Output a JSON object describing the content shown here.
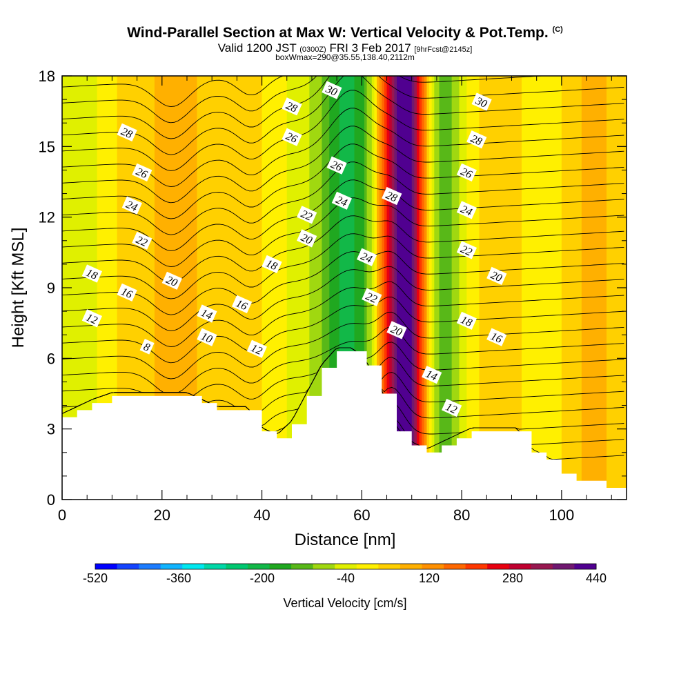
{
  "title": {
    "main": "Wind-Parallel Section at Max W: Vertical Velocity & Pot.Temp.",
    "main_tag": "(C)",
    "valid_prefix": "Valid 1200 JST",
    "valid_utc": "(0300Z)",
    "valid_date": "FRI 3 Feb 2017",
    "forecast": "[9hrFcst@2145z]",
    "box": "boxWmax=290@35.55,138.40,2112m"
  },
  "colorbar_label": "Vertical Velocity [cm/s]",
  "colors": {
    "colorbar": [
      "#0000ff",
      "#1444ff",
      "#1c7cff",
      "#10b4ff",
      "#00e8f0",
      "#00d8a8",
      "#00c870",
      "#12b848",
      "#20a820",
      "#58b818",
      "#a0d810",
      "#e0f000",
      "#fff000",
      "#ffd000",
      "#ffb000",
      "#ff9000",
      "#ff6800",
      "#ff3800",
      "#e80010",
      "#c00030",
      "#981850",
      "#701870",
      "#500090"
    ]
  },
  "chart_data": {
    "type": "heatmap",
    "title": "Wind-Parallel Section at Max W: Vertical Velocity & Pot.Temp.",
    "xlabel": "Distance [nm]",
    "ylabel": "Height [Kft MSL]",
    "xlim": [
      0,
      113
    ],
    "ylim": [
      0,
      18
    ],
    "x_ticks": [
      0,
      20,
      40,
      60,
      80,
      100
    ],
    "y_ticks": [
      0,
      3,
      6,
      9,
      12,
      15,
      18
    ],
    "colorbar": {
      "variable": "Vertical Velocity [cm/s]",
      "min": -520,
      "max": 440,
      "step": 40,
      "tick_values": [
        -520,
        -360,
        -200,
        -40,
        120,
        280,
        440
      ]
    },
    "vertical_velocity_columns": {
      "distance_nm": [
        0,
        3,
        6,
        9,
        12,
        15,
        18,
        21,
        24,
        27,
        30,
        33,
        36,
        39,
        42,
        45,
        48,
        51,
        54,
        57,
        60,
        62,
        64,
        66,
        68,
        70,
        72,
        74,
        76,
        78,
        80,
        82,
        85,
        88,
        91,
        94,
        97,
        100,
        103,
        106,
        109,
        113
      ],
      "w_cm_s": [
        -60,
        -70,
        -50,
        -20,
        10,
        0,
        30,
        80,
        60,
        40,
        20,
        30,
        40,
        10,
        -20,
        -40,
        -60,
        -100,
        -180,
        -220,
        -180,
        -80,
        120,
        300,
        420,
        360,
        160,
        -40,
        -160,
        -120,
        -60,
        -20,
        20,
        40,
        10,
        -30,
        -20,
        0,
        30,
        60,
        40,
        20
      ]
    },
    "terrain": {
      "distance_nm": [
        0,
        3,
        6,
        10,
        13,
        16,
        19,
        22,
        25,
        28,
        31,
        34,
        37,
        40,
        43,
        46,
        49,
        52,
        55,
        58,
        61,
        64,
        67,
        70,
        73,
        76,
        79,
        82,
        85,
        88,
        91,
        94,
        97,
        100,
        103,
        106,
        109,
        113
      ],
      "height_kft": [
        3.5,
        3.8,
        4.1,
        4.4,
        4.4,
        4.4,
        4.4,
        4.4,
        4.4,
        4.1,
        3.8,
        3.8,
        3.8,
        2.9,
        2.6,
        3.2,
        4.4,
        5.6,
        6.3,
        6.3,
        5.7,
        4.5,
        2.9,
        2.3,
        2.0,
        2.3,
        2.6,
        2.9,
        2.9,
        2.9,
        2.9,
        2.0,
        1.7,
        1.1,
        0.8,
        0.8,
        0.5,
        0.3
      ]
    },
    "contour_variable": "potential temperature (C)",
    "contour_interval": 1,
    "contour_values": [
      7,
      8,
      9,
      10,
      11,
      12,
      13,
      14,
      15,
      16,
      17,
      18,
      19,
      20,
      21,
      22,
      23,
      24,
      25,
      26,
      27,
      28,
      29,
      30,
      31,
      32
    ],
    "contour_label_values": [
      8,
      10,
      12,
      14,
      16,
      18,
      20,
      22,
      24,
      26,
      28,
      30
    ],
    "contour_labels": [
      {
        "text": "8",
        "x": 17,
        "y": 6.5
      },
      {
        "text": "10",
        "x": 29,
        "y": 6.9
      },
      {
        "text": "12",
        "x": 6,
        "y": 7.7
      },
      {
        "text": "14",
        "x": 29,
        "y": 7.9
      },
      {
        "text": "16",
        "x": 13,
        "y": 8.8
      },
      {
        "text": "18",
        "x": 6,
        "y": 9.6
      },
      {
        "text": "20",
        "x": 22,
        "y": 9.3
      },
      {
        "text": "22",
        "x": 16,
        "y": 11.0
      },
      {
        "text": "24",
        "x": 14,
        "y": 12.5
      },
      {
        "text": "26",
        "x": 16,
        "y": 13.9
      },
      {
        "text": "28",
        "x": 13,
        "y": 15.6
      },
      {
        "text": "12",
        "x": 39,
        "y": 6.4
      },
      {
        "text": "16",
        "x": 36,
        "y": 8.3
      },
      {
        "text": "18",
        "x": 42,
        "y": 10.0
      },
      {
        "text": "20",
        "x": 49,
        "y": 11.1
      },
      {
        "text": "22",
        "x": 49,
        "y": 12.1
      },
      {
        "text": "24",
        "x": 56,
        "y": 12.7
      },
      {
        "text": "26",
        "x": 55,
        "y": 14.2
      },
      {
        "text": "26",
        "x": 46,
        "y": 15.4
      },
      {
        "text": "28",
        "x": 46,
        "y": 16.7
      },
      {
        "text": "30",
        "x": 54,
        "y": 17.4
      },
      {
        "text": "24",
        "x": 61,
        "y": 10.3
      },
      {
        "text": "22",
        "x": 62,
        "y": 8.6
      },
      {
        "text": "20",
        "x": 67,
        "y": 7.2
      },
      {
        "text": "28",
        "x": 66,
        "y": 12.9
      },
      {
        "text": "14",
        "x": 74,
        "y": 5.3
      },
      {
        "text": "12",
        "x": 78,
        "y": 3.9
      },
      {
        "text": "16",
        "x": 87,
        "y": 6.9
      },
      {
        "text": "18",
        "x": 81,
        "y": 7.6
      },
      {
        "text": "20",
        "x": 87,
        "y": 9.5
      },
      {
        "text": "22",
        "x": 81,
        "y": 10.6
      },
      {
        "text": "24",
        "x": 81,
        "y": 12.3
      },
      {
        "text": "26",
        "x": 81,
        "y": 13.9
      },
      {
        "text": "28",
        "x": 83,
        "y": 15.3
      },
      {
        "text": "30",
        "x": 84,
        "y": 16.9
      }
    ]
  }
}
